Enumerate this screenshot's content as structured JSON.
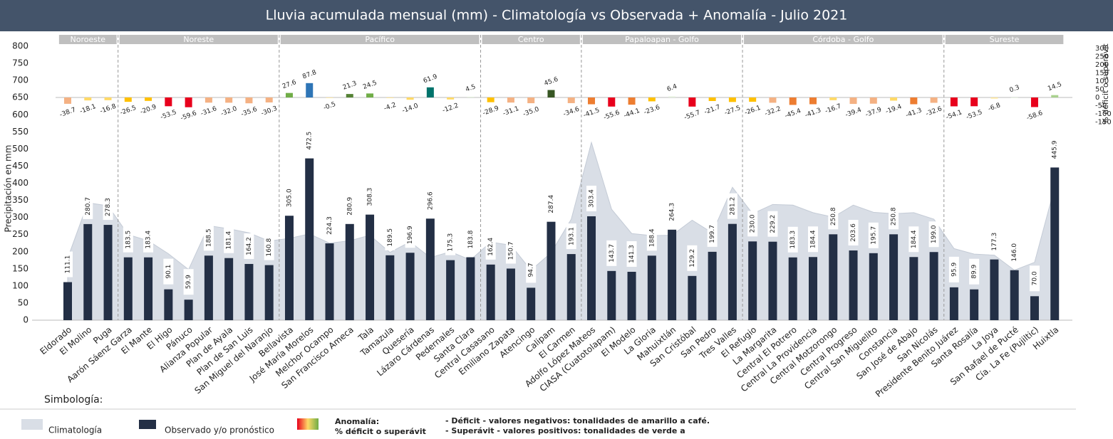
{
  "chart_data": {
    "type": "bar",
    "title": "Lluvia  acumulada mensual (mm)  -  Climatología vs Observada + Anomalía   -  Julio 2021",
    "ylabel": "Precipitación en mm",
    "y2label": "% déficit o superávit",
    "ylim": [
      0,
      800
    ],
    "yticks": [
      0,
      50,
      100,
      150,
      200,
      250,
      300,
      350,
      400,
      450,
      500,
      550,
      600,
      650,
      700,
      750,
      800
    ],
    "y2lim": [
      -150,
      300
    ],
    "y2ticks": [
      -150,
      -100,
      -50,
      0,
      50,
      100,
      150,
      200,
      250,
      300
    ],
    "grid": false,
    "regions": [
      {
        "name": "Noroeste",
        "categories": [
          "Eldorado",
          "El Molino",
          "Puga"
        ]
      },
      {
        "name": "Noreste",
        "categories": [
          "Aarón Sáenz Garza",
          "El Mante",
          "El Higo",
          "Pánuco",
          "Alianza Popular",
          "Plan de Ayala",
          "Plan de San Luis",
          "San Miguel del Naranjo"
        ]
      },
      {
        "name": "Pacífico",
        "categories": [
          "Bellavista",
          "José María Morelos",
          "Melchor Ocampo",
          "San Francisco Ameca",
          "Tala",
          "Tamazula",
          "Quesería",
          "Lázaro Cárdenas",
          "Pedernales",
          "Santa Clara"
        ]
      },
      {
        "name": "Centro",
        "categories": [
          "Central Casasano",
          "Emiliano Zapata",
          "Atencingo",
          "Calipam",
          "El Carmen"
        ]
      },
      {
        "name": "Papaloapan - Golfo",
        "categories": [
          "Adolfo López Mateos",
          "CIASA (Cuatotolapam)",
          "El Modelo",
          "La Gloria",
          "Mahuixtlán",
          "San Cristóbal",
          "San Pedro",
          "Tres Valles"
        ]
      },
      {
        "name": "Córdoba - Golfo",
        "categories": [
          "El Refugio",
          "La Margarita",
          "Central El Potrero",
          "Central La Providencia",
          "Central Motzorongo",
          "Central Progreso",
          "Central San Miguelito",
          "Constancia",
          "San José de Abajo",
          "San Nicolás"
        ]
      },
      {
        "name": "Sureste",
        "categories": [
          "Presidente Benito Juárez",
          "Santa Rosalía",
          "La Joya",
          "San Rafael de Pucté",
          "Cía. La Fe (Pujiltic)",
          "Huixtla"
        ]
      }
    ],
    "series": [
      {
        "name": "Climatología",
        "type": "area",
        "color": "#d9dee6",
        "values": [
          181,
          343,
          334,
          250,
          232,
          194,
          148,
          276,
          267,
          255,
          231,
          239,
          252,
          225,
          232,
          248,
          198,
          229,
          183,
          200,
          176,
          228,
          219,
          146,
          197,
          295,
          519,
          324,
          253,
          247,
          248,
          292,
          255,
          388,
          311,
          338,
          336,
          314,
          301,
          336,
          315,
          311,
          314,
          295,
          209,
          193,
          190,
          146,
          169,
          389
        ]
      },
      {
        "name": "Observado y/o pronóstico",
        "type": "bar",
        "color": "#232f45",
        "values": [
          111.1,
          280.7,
          278.3,
          183.5,
          183.4,
          90.1,
          59.9,
          188.5,
          181.4,
          164.2,
          160.8,
          305.0,
          472.5,
          224.3,
          280.9,
          308.3,
          189.5,
          196.9,
          296.6,
          175.3,
          183.8,
          162.4,
          150.7,
          94.7,
          287.4,
          193.1,
          303.4,
          143.7,
          141.3,
          188.4,
          264.3,
          129.2,
          199.7,
          281.2,
          230.0,
          229.2,
          183.3,
          184.4,
          250.8,
          203.6,
          195.7,
          250.8,
          184.4,
          199.0,
          95.9,
          89.9,
          177.3,
          146.0,
          70.0,
          445.9
        ],
        "value_labels": [
          "111.1",
          "280.7",
          "278.3",
          "183.5",
          "183.4",
          "90.1",
          "59.9",
          "188.5",
          "181.4",
          "164.2",
          "160.8",
          "305.0",
          "472.5",
          "224.3",
          "280.9",
          "308.3",
          "189.5",
          "196.9",
          "296.6",
          "175.3",
          "183.8",
          "162.4",
          "150.7",
          "94.7",
          "287.4",
          "193.1",
          "303.4",
          "143.7",
          "141.3",
          "188.4",
          "264.3",
          "129.2",
          "199.7",
          "281.2",
          "230.0",
          "229.2",
          "183.3",
          "184.4",
          "250.8",
          "203.6",
          "195.7",
          "250.8",
          "184.4",
          "199.0",
          "95.9",
          "89.9",
          "177.3",
          "146.0",
          "70.0",
          "445.9"
        ]
      },
      {
        "name": "Anomalía:",
        "type": "bar",
        "axis": "y2",
        "values": [
          -38.7,
          -18.1,
          -16.8,
          -26.5,
          -20.9,
          -53.5,
          -59.6,
          -31.6,
          -32.0,
          -35.6,
          -30.3,
          27.6,
          87.8,
          -0.5,
          21.3,
          24.5,
          -4.2,
          -14.0,
          61.9,
          -12.2,
          4.5,
          -28.9,
          -31.1,
          -35.0,
          45.6,
          -34.6,
          -41.5,
          -55.6,
          -44.1,
          -23.6,
          6.4,
          -55.7,
          -21.7,
          -27.5,
          -26.1,
          -32.2,
          -45.4,
          -41.3,
          -16.7,
          -39.4,
          -37.9,
          -19.4,
          -41.3,
          -32.6,
          -54.1,
          -53.5,
          -6.8,
          0.3,
          -58.6,
          14.5
        ],
        "value_labels": [
          "-38.7",
          "-18.1",
          "-16.8",
          "-26.5",
          "-20.9",
          "-53.5",
          "-59.6",
          "-31.6",
          "-32.0",
          "-35.6",
          "-30.3",
          "27.6",
          "87.8",
          "-0.5",
          "21.3",
          "24.5",
          "-4.2",
          "-14.0",
          "61.9",
          "-12.2",
          "4.5",
          "-28.9",
          "-31.1",
          "-35.0",
          "45.6",
          "-34.6",
          "-41.5",
          "-55.6",
          "-44.1",
          "-23.6",
          "6.4",
          "-55.7",
          "-21.7",
          "-27.5",
          "-26.1",
          "-32.2",
          "-45.4",
          "-41.3",
          "-16.7",
          "-39.4",
          "-37.9",
          "-19.4",
          "-41.3",
          "-32.6",
          "-54.1",
          "-53.5",
          "-6.8",
          "0.3",
          "-58.6",
          "14.5"
        ],
        "colors": [
          "#f4b183",
          "#ffd966",
          "#ffd966",
          "#ffc000",
          "#ffc000",
          "#e8001c",
          "#e8001c",
          "#f4b183",
          "#f4b183",
          "#f4b183",
          "#f4b183",
          "#70ad47",
          "#2e75b6",
          "#ffe699",
          "#548235",
          "#70ad47",
          "#ffe699",
          "#ffd966",
          "#00736b",
          "#ffd966",
          "#e2efda",
          "#ffc000",
          "#f4b183",
          "#f4b183",
          "#375623",
          "#f4b183",
          "#ed7d31",
          "#e8001c",
          "#ed7d31",
          "#ffc000",
          "#e2efda",
          "#e8001c",
          "#ffc000",
          "#ffc000",
          "#ffc000",
          "#f4b183",
          "#ed7d31",
          "#ed7d31",
          "#ffd966",
          "#f4b183",
          "#f4b183",
          "#ffd966",
          "#ed7d31",
          "#f4b183",
          "#e8001c",
          "#e8001c",
          "#ffe699",
          "#e2efda",
          "#e8001c",
          "#a9d18e"
        ]
      }
    ],
    "legend": {
      "title": "Simbología:",
      "notes": [
        "- Déficit - valores negativos: tonalidades de amarillo a café.",
        "- Superávit - valores positivos: tonalidades de verde a"
      ]
    }
  }
}
